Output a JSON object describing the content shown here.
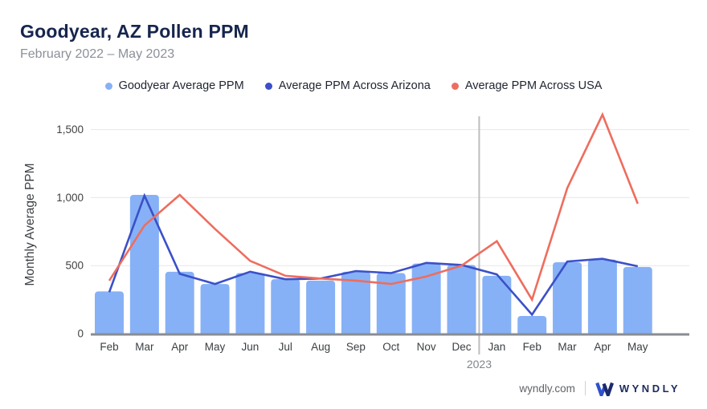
{
  "header": {
    "title": "Goodyear, AZ Pollen PPM",
    "subtitle": "February 2022 – May 2023"
  },
  "footer": {
    "site": "wyndly.com",
    "brand": "WYNDLY"
  },
  "colors": {
    "bar": "#87b1f6",
    "arizona_line": "#3b50c8",
    "usa_line": "#ee6d5e",
    "grid": "#e7e7e7",
    "axis": "#898d92",
    "year_divider": "#bdbdbd",
    "tick_text": "#424242",
    "month_text": "#3c4043",
    "year_text": "#80868b",
    "logo_blue": "#2e51cc",
    "logo_navy": "#1a2a6c"
  },
  "chart_data": {
    "type": "combo",
    "title": "Goodyear, AZ Pollen PPM",
    "xlabel": "",
    "ylabel": "Monthly Average PPM",
    "categories": [
      "Feb",
      "Mar",
      "Apr",
      "May",
      "Jun",
      "Jul",
      "Aug",
      "Sep",
      "Oct",
      "Nov",
      "Dec",
      "Jan",
      "Feb",
      "Mar",
      "Apr",
      "May"
    ],
    "year_divider": {
      "between": [
        "Dec",
        "Jan"
      ],
      "label": "2023"
    },
    "ylim": [
      0,
      1650
    ],
    "yticks": [
      {
        "value": 0,
        "label": "0"
      },
      {
        "value": 500,
        "label": "500"
      },
      {
        "value": 1000,
        "label": "1,000"
      },
      {
        "value": 1500,
        "label": "1,500"
      }
    ],
    "grid": true,
    "legend_position": "top",
    "series": [
      {
        "name": "Goodyear Average PPM",
        "type": "bar",
        "color": "#87b1f6",
        "values": [
          310,
          1020,
          455,
          365,
          445,
          400,
          390,
          455,
          445,
          515,
          505,
          425,
          130,
          525,
          545,
          490
        ]
      },
      {
        "name": "Average PPM Across Arizona",
        "type": "line",
        "color": "#3b50c8",
        "values": [
          305,
          1015,
          440,
          365,
          455,
          400,
          405,
          460,
          445,
          520,
          505,
          435,
          140,
          530,
          550,
          495
        ]
      },
      {
        "name": "Average PPM Across USA",
        "type": "line",
        "color": "#ee6d5e",
        "values": [
          390,
          795,
          1020,
          770,
          535,
          425,
          405,
          390,
          365,
          420,
          500,
          680,
          250,
          1070,
          1610,
          955
        ]
      }
    ]
  }
}
